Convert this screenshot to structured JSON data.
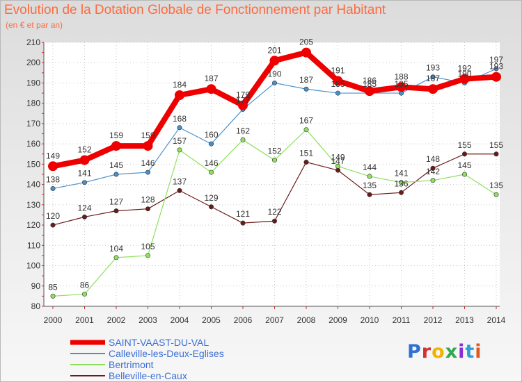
{
  "title": "Evolution de la Dotation Globale de Fonctionnement par Habitant",
  "subtitle": "(en € et par an)",
  "logo": "Proxiti",
  "chart_data": {
    "type": "line",
    "title": "Evolution de la Dotation Globale de Fonctionnement par Habitant",
    "subtitle": "(en € et par an)",
    "xlabel": "",
    "ylabel": "",
    "categories": [
      "2000",
      "2001",
      "2002",
      "2003",
      "2004",
      "2005",
      "2006",
      "2007",
      "2008",
      "2009",
      "2010",
      "2011",
      "2012",
      "2013",
      "2014"
    ],
    "ylim": [
      80,
      210
    ],
    "yticks": [
      80,
      90,
      100,
      110,
      120,
      130,
      140,
      150,
      160,
      170,
      180,
      190,
      200,
      210
    ],
    "grid": true,
    "legend_position": "bottom",
    "series": [
      {
        "name": "SAINT-VAAST-DU-VAL",
        "color": "#ee0000",
        "emphasis": true,
        "values": [
          149,
          152,
          159,
          159,
          184,
          187,
          179,
          201,
          205,
          191,
          186,
          188,
          187,
          192,
          193
        ]
      },
      {
        "name": "Calleville-les-Deux-Eglises",
        "color": "#4a90c8",
        "values": [
          138,
          141,
          145,
          146,
          168,
          160,
          177,
          190,
          187,
          185,
          185,
          185,
          193,
          190,
          197
        ]
      },
      {
        "name": "Bertrimont",
        "color": "#90e060",
        "values": [
          85,
          86,
          104,
          105,
          157,
          146,
          162,
          152,
          167,
          149,
          144,
          141,
          142,
          145,
          135
        ]
      },
      {
        "name": "Belleville-en-Caux",
        "color": "#6b1a1a",
        "values": [
          120,
          124,
          127,
          128,
          137,
          129,
          121,
          122,
          151,
          147,
          135,
          136,
          148,
          155,
          155
        ]
      }
    ]
  }
}
